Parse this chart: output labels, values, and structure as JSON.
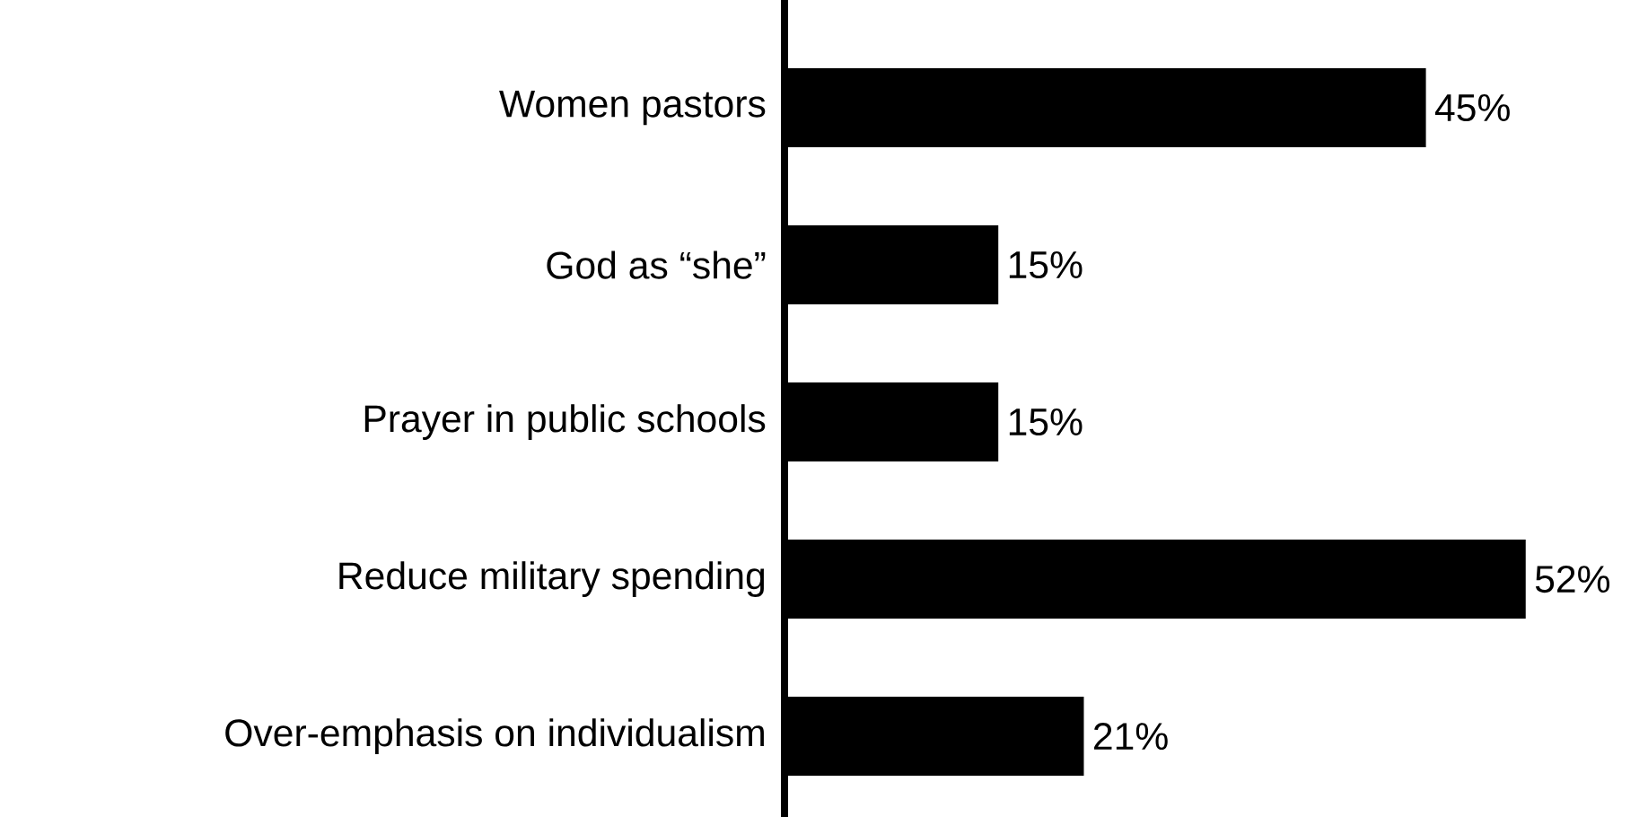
{
  "chart_data": {
    "type": "bar",
    "orientation": "horizontal",
    "categories": [
      "Women pastors",
      "God as “she”",
      "Prayer in public schools",
      "Reduce military spending",
      "Over-emphasis on individualism"
    ],
    "values": [
      45,
      15,
      15,
      52,
      21
    ],
    "value_labels": [
      "45%",
      "15%",
      "15%",
      "52%",
      "21%"
    ],
    "color": "#000000"
  }
}
